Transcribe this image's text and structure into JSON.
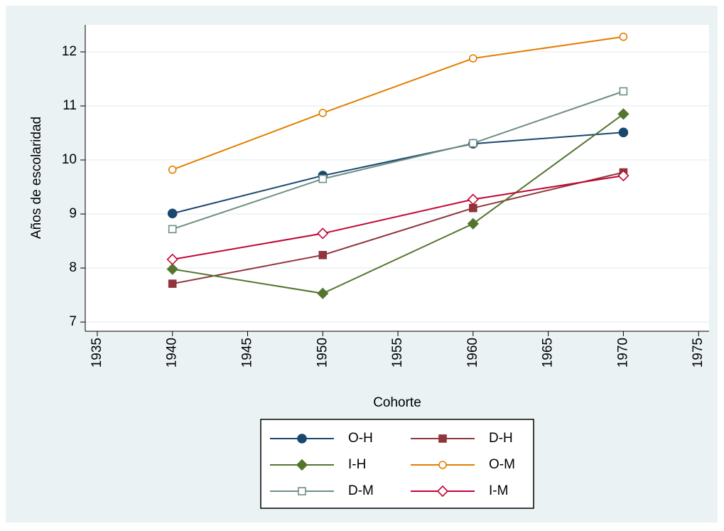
{
  "chart_data": {
    "type": "line",
    "xlabel": "Cohorte",
    "ylabel": "Años de escolaridad",
    "x": [
      1940,
      1950,
      1960,
      1970
    ],
    "series": [
      {
        "name": "O-H",
        "color": "#1a476f",
        "marker": "circle",
        "filled": true,
        "values": [
          9.01,
          9.71,
          10.3,
          10.51
        ]
      },
      {
        "name": "D-H",
        "color": "#90353b",
        "marker": "square",
        "filled": true,
        "values": [
          7.71,
          8.24,
          9.11,
          9.77
        ]
      },
      {
        "name": "I-H",
        "color": "#55752f",
        "marker": "diamond",
        "filled": true,
        "values": [
          7.98,
          7.53,
          8.82,
          10.85
        ]
      },
      {
        "name": "O-M",
        "color": "#e37e00",
        "marker": "circle",
        "filled": false,
        "values": [
          9.82,
          10.87,
          11.88,
          12.28
        ]
      },
      {
        "name": "D-M",
        "color": "#6e8e84",
        "marker": "square",
        "filled": false,
        "values": [
          8.72,
          9.65,
          10.31,
          11.27
        ]
      },
      {
        "name": "I-M",
        "color": "#c10534",
        "marker": "diamond",
        "filled": false,
        "values": [
          8.16,
          8.64,
          9.27,
          9.71
        ]
      }
    ],
    "xlim": [
      1934.2,
      1975.7
    ],
    "xticks": [
      1935,
      1940,
      1945,
      1950,
      1955,
      1960,
      1965,
      1970,
      1975
    ],
    "ylim": [
      6.83,
      12.5
    ],
    "yticks": [
      7,
      8,
      9,
      10,
      11,
      12
    ],
    "grid": true,
    "legend": "bottom"
  }
}
